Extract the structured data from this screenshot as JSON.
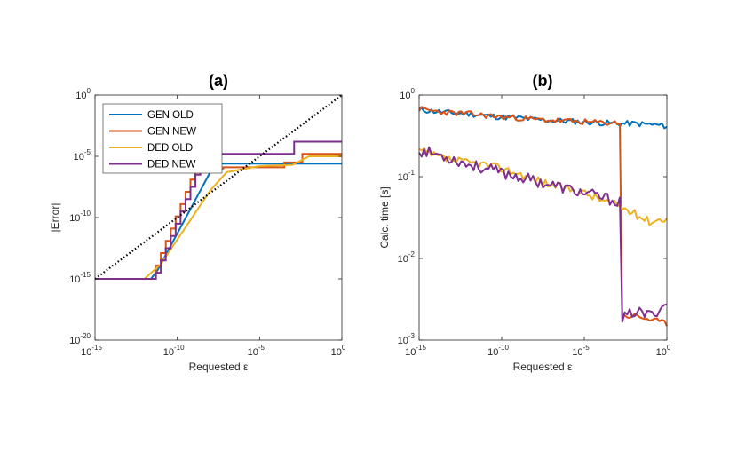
{
  "colors": {
    "gen_old": "#0072BD",
    "gen_new": "#D95319",
    "ded_old": "#EDB120",
    "ded_new": "#7E2F8E",
    "reference": "#000000"
  },
  "chart_data": [
    {
      "type": "line",
      "title": "(a)",
      "xlabel": "Requested ε",
      "ylabel": "|Error|",
      "xscale": "log",
      "yscale": "log",
      "xlim_exp": [
        -15,
        0
      ],
      "ylim_exp": [
        -20,
        0
      ],
      "x_ticks": [
        {
          "base": "10",
          "exp": "-15",
          "value": -15
        },
        {
          "base": "10",
          "exp": "-10",
          "value": -10
        },
        {
          "base": "10",
          "exp": "-5",
          "value": -5
        },
        {
          "base": "10",
          "exp": "0",
          "value": 0
        }
      ],
      "y_ticks": [
        {
          "base": "10",
          "exp": "-20",
          "value": -20
        },
        {
          "base": "10",
          "exp": "-15",
          "value": -15
        },
        {
          "base": "10",
          "exp": "-10",
          "value": -10
        },
        {
          "base": "10",
          "exp": "-5",
          "value": -5
        },
        {
          "base": "10",
          "exp": "0",
          "value": 0
        }
      ],
      "legend": {
        "location": "top-left",
        "entries": [
          {
            "label": "GEN OLD",
            "color_key": "gen_old"
          },
          {
            "label": "GEN NEW",
            "color_key": "gen_new"
          },
          {
            "label": "DED OLD",
            "color_key": "ded_old"
          },
          {
            "label": "DED NEW",
            "color_key": "ded_new"
          }
        ]
      },
      "reference_line": {
        "name": "y = x",
        "style": "dotted",
        "color_key": "reference",
        "x_exp": [
          -15,
          0
        ],
        "y_exp": [
          -15,
          0
        ]
      },
      "series": [
        {
          "name": "GEN OLD",
          "color_key": "gen_old",
          "points": [
            [
              -15,
              -15.0
            ],
            [
              -11.6,
              -15.0
            ],
            [
              -11.2,
              -14.3
            ],
            [
              -10.8,
              -13.3
            ],
            [
              -10.4,
              -12.3
            ],
            [
              -10.0,
              -11.3
            ],
            [
              -9.6,
              -10.3
            ],
            [
              -9.2,
              -9.3
            ],
            [
              -8.8,
              -8.3
            ],
            [
              -8.4,
              -7.3
            ],
            [
              -8.0,
              -6.3
            ],
            [
              -7.6,
              -5.6
            ],
            [
              -7.0,
              -5.6
            ],
            [
              -2.0,
              -5.6
            ],
            [
              0,
              -5.6
            ]
          ]
        },
        {
          "name": "GEN NEW",
          "color_key": "gen_new",
          "steps": [
            [
              -15,
              -15.0
            ],
            [
              -11.5,
              -15.0
            ],
            [
              -11.3,
              -13.9
            ],
            [
              -11.0,
              -12.9
            ],
            [
              -10.7,
              -11.9
            ],
            [
              -10.4,
              -10.9
            ],
            [
              -10.1,
              -9.9
            ],
            [
              -9.8,
              -8.9
            ],
            [
              -9.5,
              -7.9
            ],
            [
              -9.2,
              -6.9
            ],
            [
              -8.9,
              -6.0
            ],
            [
              -7.2,
              -5.9
            ],
            [
              -3.5,
              -5.5
            ],
            [
              -2.4,
              -4.8
            ],
            [
              -2.0,
              -4.8
            ],
            [
              0,
              -4.8
            ]
          ]
        },
        {
          "name": "DED OLD",
          "color_key": "ded_old",
          "points": [
            [
              -15,
              -15.0
            ],
            [
              -12.0,
              -15.0
            ],
            [
              -11.0,
              -13.8
            ],
            [
              -10.0,
              -11.8
            ],
            [
              -9.0,
              -9.8
            ],
            [
              -8.0,
              -7.8
            ],
            [
              -7.0,
              -6.3
            ],
            [
              -5.0,
              -5.8
            ],
            [
              -3.0,
              -5.7
            ],
            [
              -2.0,
              -5.0
            ],
            [
              -1.0,
              -5.0
            ],
            [
              0,
              -5.0
            ]
          ]
        },
        {
          "name": "DED NEW",
          "color_key": "ded_new",
          "steps": [
            [
              -15,
              -15.0
            ],
            [
              -11.6,
              -15.0
            ],
            [
              -11.3,
              -14.5
            ],
            [
              -11.0,
              -13.5
            ],
            [
              -10.7,
              -12.5
            ],
            [
              -10.4,
              -11.5
            ],
            [
              -10.1,
              -10.5
            ],
            [
              -9.8,
              -9.5
            ],
            [
              -9.5,
              -8.5
            ],
            [
              -9.2,
              -7.5
            ],
            [
              -8.9,
              -6.5
            ],
            [
              -8.6,
              -5.5
            ],
            [
              -8.3,
              -4.8
            ],
            [
              -2.9,
              -4.7
            ],
            [
              -2.9,
              -3.8
            ],
            [
              0,
              -3.8
            ]
          ]
        }
      ]
    },
    {
      "type": "line",
      "title": "(b)",
      "xlabel": "Requested ε",
      "ylabel": "Calc. time [s]",
      "xscale": "log",
      "yscale": "log",
      "xlim_exp": [
        -15,
        0
      ],
      "ylim_exp": [
        -3,
        0
      ],
      "x_ticks": [
        {
          "base": "10",
          "exp": "-15",
          "value": -15
        },
        {
          "base": "10",
          "exp": "-10",
          "value": -10
        },
        {
          "base": "10",
          "exp": "-5",
          "value": -5
        },
        {
          "base": "10",
          "exp": "0",
          "value": 0
        }
      ],
      "y_ticks": [
        {
          "base": "10",
          "exp": "-3",
          "value": -3
        },
        {
          "base": "10",
          "exp": "-2",
          "value": -2
        },
        {
          "base": "10",
          "exp": "-1",
          "value": -1
        },
        {
          "base": "10",
          "exp": "0",
          "value": 0
        }
      ],
      "series": [
        {
          "name": "GEN OLD",
          "color_key": "gen_old",
          "x_exp": [
            -15,
            -14,
            -13,
            -12,
            -11,
            -10,
            -9,
            -8,
            -7,
            -6,
            -5,
            -4,
            -3,
            -2,
            -1,
            0
          ],
          "log10_values": [
            -0.18,
            -0.2,
            -0.22,
            -0.23,
            -0.25,
            -0.27,
            -0.28,
            -0.3,
            -0.31,
            -0.32,
            -0.33,
            -0.34,
            -0.35,
            -0.35,
            -0.36,
            -0.38
          ],
          "jitter": 0.035,
          "seed": 11
        },
        {
          "name": "GEN NEW",
          "color_key": "gen_new",
          "x_exp": [
            -15,
            -14,
            -13,
            -12,
            -11,
            -10,
            -9,
            -8,
            -7,
            -6,
            -5,
            -4,
            -3,
            -2.72,
            -2.7,
            -2,
            -1,
            0
          ],
          "log10_values": [
            -0.17,
            -0.2,
            -0.22,
            -0.23,
            -0.25,
            -0.27,
            -0.28,
            -0.3,
            -0.31,
            -0.32,
            -0.33,
            -0.34,
            -0.34,
            -0.34,
            -2.72,
            -2.7,
            -2.75,
            -2.8
          ],
          "jitter": 0.035,
          "seed": 23
        },
        {
          "name": "DED OLD",
          "color_key": "ded_old",
          "x_exp": [
            -15,
            -14,
            -13,
            -12,
            -11,
            -10,
            -9,
            -8,
            -7,
            -6,
            -5,
            -4,
            -3,
            -2,
            -1,
            0
          ],
          "log10_values": [
            -0.68,
            -0.75,
            -0.8,
            -0.83,
            -0.85,
            -0.9,
            -0.96,
            -1.03,
            -1.1,
            -1.15,
            -1.2,
            -1.28,
            -1.35,
            -1.45,
            -1.55,
            -1.5
          ],
          "jitter": 0.05,
          "seed": 37
        },
        {
          "name": "DED NEW",
          "color_key": "ded_new",
          "x_exp": [
            -15,
            -14,
            -13,
            -12,
            -11,
            -10,
            -9,
            -8,
            -7,
            -6,
            -5,
            -4,
            -3,
            -2.72,
            -2.7,
            -2,
            -1,
            0
          ],
          "log10_values": [
            -0.68,
            -0.72,
            -0.78,
            -0.85,
            -0.9,
            -0.95,
            -1.0,
            -1.05,
            -1.1,
            -1.15,
            -1.2,
            -1.25,
            -1.3,
            -1.32,
            -2.75,
            -2.65,
            -2.7,
            -2.55
          ],
          "jitter": 0.07,
          "seed": 53
        }
      ]
    }
  ]
}
